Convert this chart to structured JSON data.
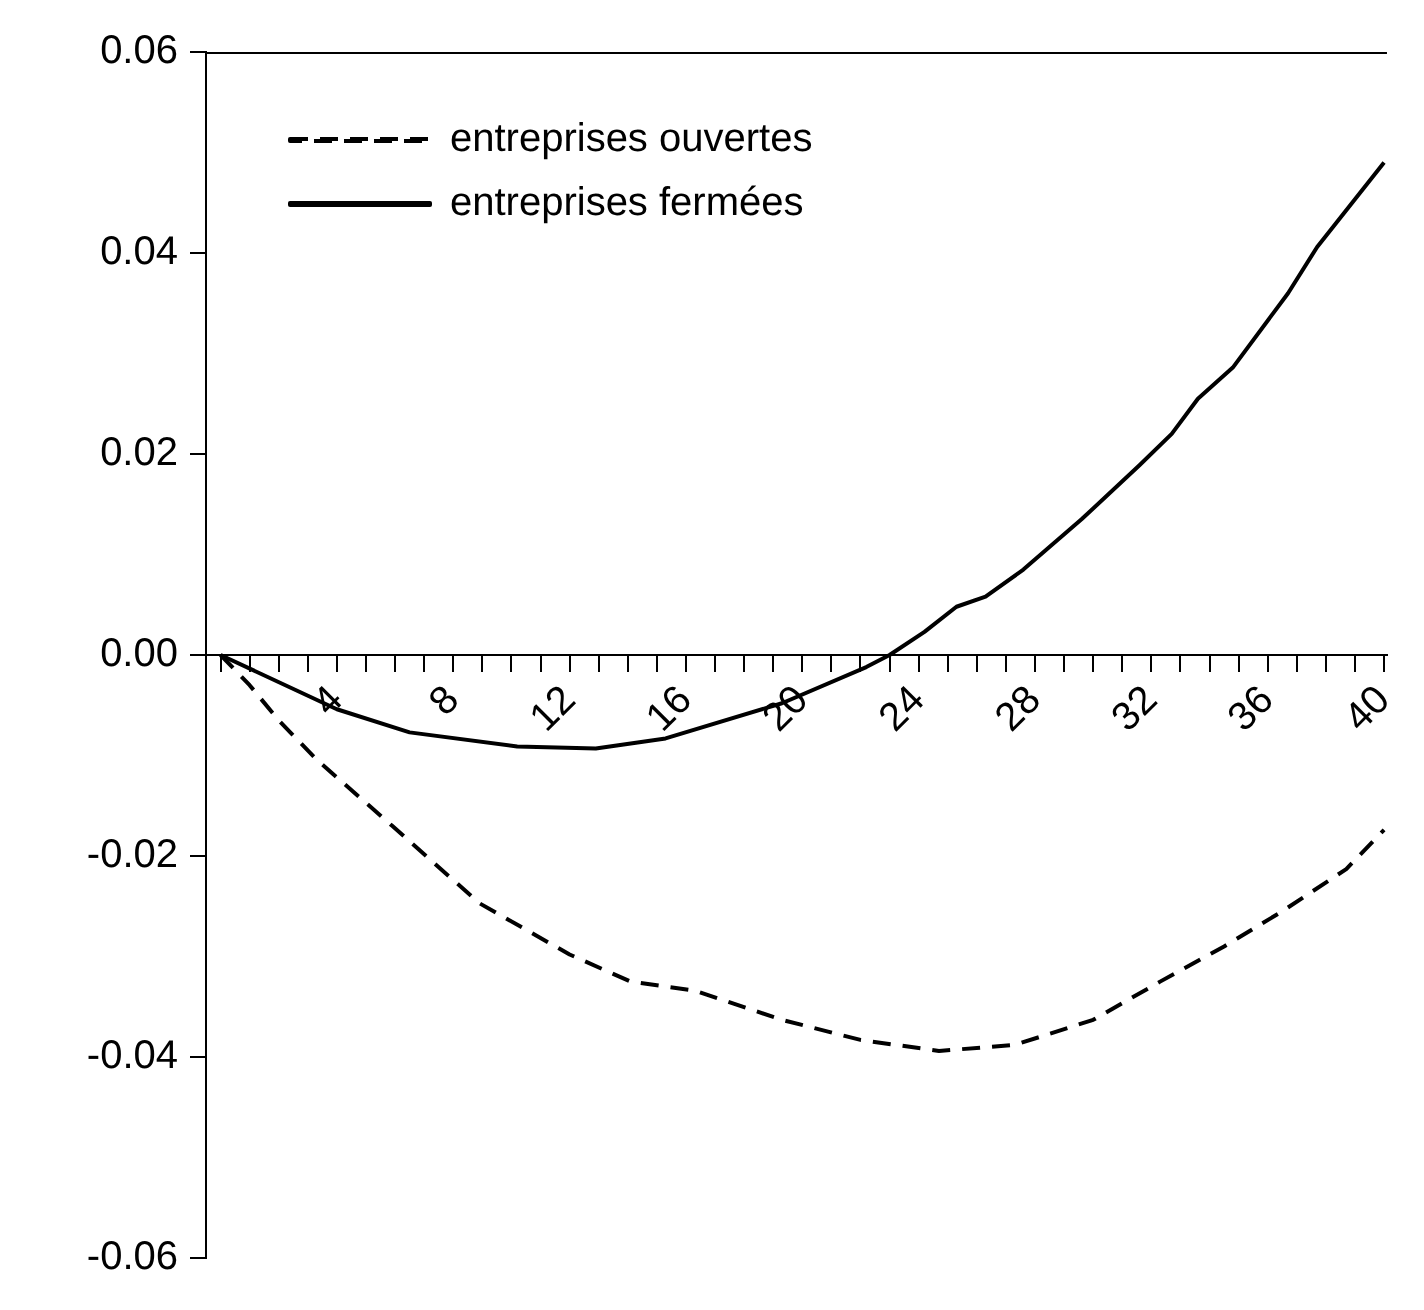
{
  "chart_data": {
    "type": "line",
    "xlim": [
      -0.5,
      40.1
    ],
    "ylim": [
      -0.06,
      0.06
    ],
    "xticks": [
      {
        "value": 0,
        "label": null
      },
      {
        "value": 1,
        "label": null
      },
      {
        "value": 2,
        "label": null
      },
      {
        "value": 3,
        "label": null
      },
      {
        "value": 4,
        "label": "4"
      },
      {
        "value": 5,
        "label": null
      },
      {
        "value": 6,
        "label": null
      },
      {
        "value": 7,
        "label": null
      },
      {
        "value": 8,
        "label": "8"
      },
      {
        "value": 9,
        "label": null
      },
      {
        "value": 10,
        "label": null
      },
      {
        "value": 11,
        "label": null
      },
      {
        "value": 12,
        "label": "12"
      },
      {
        "value": 13,
        "label": null
      },
      {
        "value": 14,
        "label": null
      },
      {
        "value": 15,
        "label": null
      },
      {
        "value": 16,
        "label": "16"
      },
      {
        "value": 17,
        "label": null
      },
      {
        "value": 18,
        "label": null
      },
      {
        "value": 19,
        "label": null
      },
      {
        "value": 20,
        "label": "20"
      },
      {
        "value": 21,
        "label": null
      },
      {
        "value": 22,
        "label": null
      },
      {
        "value": 23,
        "label": null
      },
      {
        "value": 24,
        "label": "24"
      },
      {
        "value": 25,
        "label": null
      },
      {
        "value": 26,
        "label": null
      },
      {
        "value": 27,
        "label": null
      },
      {
        "value": 28,
        "label": "28"
      },
      {
        "value": 29,
        "label": null
      },
      {
        "value": 30,
        "label": null
      },
      {
        "value": 31,
        "label": null
      },
      {
        "value": 32,
        "label": "32"
      },
      {
        "value": 33,
        "label": null
      },
      {
        "value": 34,
        "label": null
      },
      {
        "value": 35,
        "label": null
      },
      {
        "value": 36,
        "label": "36"
      },
      {
        "value": 37,
        "label": null
      },
      {
        "value": 38,
        "label": null
      },
      {
        "value": 39,
        "label": null
      },
      {
        "value": 40,
        "label": "40"
      }
    ],
    "yticks": [
      {
        "value": -0.06,
        "label": "-0.06"
      },
      {
        "value": -0.04,
        "label": "-0.04"
      },
      {
        "value": -0.02,
        "label": "-0.02"
      },
      {
        "value": 0,
        "label": "0.00"
      },
      {
        "value": 0.02,
        "label": "0.02"
      },
      {
        "value": 0.04,
        "label": "0.04"
      },
      {
        "value": 0.06,
        "label": "0.06"
      }
    ],
    "grid": false,
    "legend": "top left",
    "marker": "none",
    "series": [
      {
        "name": "entreprises ouvertes",
        "color": "#000000",
        "line_style": "dashed",
        "x": [
          0,
          1,
          2,
          3.3,
          5.9,
          8.9,
          12,
          14.1,
          16.3,
          19.3,
          22,
          24.7,
          27.3,
          30,
          32.3,
          34.5,
          36.5,
          38.7,
          40
        ],
        "values": [
          0,
          -0.003,
          -0.0065,
          -0.0104,
          -0.017,
          -0.0247,
          -0.0298,
          -0.0325,
          -0.0334,
          -0.0363,
          -0.0383,
          -0.0394,
          -0.0388,
          -0.0363,
          -0.0325,
          -0.029,
          -0.0255,
          -0.0213,
          -0.0174
        ]
      },
      {
        "name": "entreprises fermées",
        "color": "#000000",
        "line_style": "solid",
        "x": [
          0,
          4,
          6.5,
          10.2,
          12.9,
          15.3,
          19.3,
          22.2,
          23,
          24.2,
          25.3,
          26.3,
          27.6,
          29.6,
          31.6,
          32.7,
          33.6,
          34.8,
          36.7,
          37.7,
          40
        ],
        "values": [
          0,
          -0.0054,
          -0.0077,
          -0.0091,
          -0.0093,
          -0.0083,
          -0.0048,
          -0.0012,
          0,
          0.0023,
          0.0048,
          0.0058,
          0.0085,
          0.0135,
          0.0189,
          0.022,
          0.0255,
          0.0286,
          0.036,
          0.0406,
          0.049
        ]
      }
    ]
  }
}
